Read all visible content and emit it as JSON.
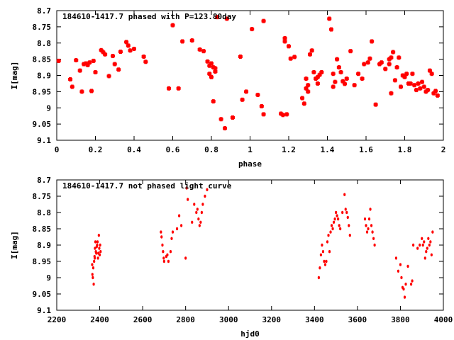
{
  "point_color": "#ff0000",
  "axis_color": "#000000",
  "chart_data": [
    {
      "type": "scatter",
      "title": "184610-1417.7 phased with P=123.80day",
      "xlabel": "phase",
      "ylabel": "I[mag]",
      "xlim": [
        0,
        2
      ],
      "ylim": [
        8.7,
        9.1
      ],
      "y_inverted": true,
      "marker": "filled-square-cross",
      "grid": false,
      "xticks": [
        0,
        0.2,
        0.4,
        0.6,
        0.8,
        1,
        1.2,
        1.4,
        1.6,
        1.8,
        2
      ],
      "xtick_labels": [
        "0",
        "0.2",
        "0.4",
        "0.6",
        "0.8",
        "1",
        "1.2",
        "1.4",
        "1.6",
        "1.8",
        "2"
      ],
      "yticks": [
        8.7,
        8.75,
        8.8,
        8.85,
        8.9,
        8.95,
        9,
        9.05,
        9.1
      ],
      "ytick_labels": [
        "8.7",
        "8.75",
        "8.8",
        "8.85",
        "8.9",
        "8.95",
        "9",
        "9.05",
        "9.1"
      ],
      "x": [
        0.01,
        0.07,
        0.08,
        0.1,
        0.12,
        0.13,
        0.14,
        0.15,
        0.16,
        0.17,
        0.18,
        0.19,
        0.2,
        0.23,
        0.24,
        0.25,
        0.27,
        0.29,
        0.3,
        0.32,
        0.33,
        0.36,
        0.37,
        0.38,
        0.4,
        0.45,
        0.46,
        0.58,
        0.6,
        0.63,
        0.65,
        0.7,
        0.74,
        0.76,
        0.78,
        0.79,
        0.79,
        0.8,
        0.8,
        0.81,
        0.81,
        0.82,
        0.82,
        0.83,
        0.85,
        0.87,
        0.88,
        0.91,
        0.95,
        0.96,
        0.98,
        1.01,
        1.04,
        1.06,
        1.07,
        1.07,
        1.16,
        1.17,
        1.18,
        1.18,
        1.19,
        1.2,
        1.21,
        1.23,
        1.27,
        1.28,
        1.29,
        1.29,
        1.3,
        1.3,
        1.31,
        1.32,
        1.33,
        1.34,
        1.35,
        1.35,
        1.36,
        1.37,
        1.41,
        1.42,
        1.43,
        1.43,
        1.44,
        1.45,
        1.46,
        1.47,
        1.48,
        1.49,
        1.5,
        1.52,
        1.54,
        1.56,
        1.58,
        1.59,
        1.61,
        1.62,
        1.63,
        1.65,
        1.67,
        1.68,
        1.7,
        1.72,
        1.72,
        1.73,
        1.73,
        1.74,
        1.75,
        1.76,
        1.77,
        1.78,
        1.79,
        1.8,
        1.81,
        1.82,
        1.83,
        1.84,
        1.85,
        1.86,
        1.87,
        1.88,
        1.89,
        1.9,
        1.91,
        1.92,
        1.93,
        1.94,
        1.95,
        1.96,
        1.97
      ],
      "y": [
        8.855,
        8.912,
        8.935,
        8.853,
        8.885,
        8.95,
        8.865,
        8.863,
        8.868,
        8.86,
        8.948,
        8.855,
        8.89,
        8.822,
        8.828,
        8.835,
        8.902,
        8.84,
        8.865,
        8.882,
        8.827,
        8.797,
        8.808,
        8.823,
        8.818,
        8.842,
        8.858,
        8.94,
        8.745,
        8.94,
        8.795,
        8.792,
        8.82,
        8.825,
        8.857,
        8.87,
        8.895,
        8.905,
        8.863,
        8.98,
        8.875,
        8.888,
        8.878,
        8.72,
        9.035,
        9.063,
        8.725,
        9.03,
        8.842,
        8.975,
        8.95,
        8.757,
        8.96,
        8.995,
        9.02,
        8.732,
        9.018,
        9.022,
        8.785,
        8.795,
        9.02,
        8.81,
        8.848,
        8.843,
        8.97,
        8.987,
        8.91,
        8.94,
        8.93,
        8.95,
        8.835,
        8.823,
        8.89,
        8.91,
        8.905,
        8.925,
        8.898,
        8.89,
        8.725,
        8.758,
        8.895,
        8.935,
        8.92,
        8.85,
        8.875,
        8.89,
        8.918,
        8.926,
        8.91,
        8.825,
        8.93,
        8.895,
        8.91,
        8.865,
        8.86,
        8.848,
        8.795,
        8.99,
        8.865,
        8.86,
        8.88,
        8.865,
        8.85,
        8.845,
        8.955,
        8.828,
        8.915,
        8.875,
        8.845,
        8.935,
        8.9,
        8.905,
        8.895,
        8.925,
        8.925,
        8.895,
        8.93,
        8.945,
        8.925,
        8.94,
        8.92,
        8.935,
        8.95,
        8.945,
        8.885,
        8.895,
        8.955,
        8.948,
        8.962
      ]
    },
    {
      "type": "scatter",
      "title": "184610-1417.7 not phased light curve",
      "xlabel": "hjd0",
      "ylabel": "I[mag]",
      "xlim": [
        2200,
        4000
      ],
      "ylim": [
        8.7,
        9.1
      ],
      "y_inverted": true,
      "marker": "small-dot",
      "grid": false,
      "xticks": [
        2200,
        2400,
        2600,
        2800,
        3000,
        3200,
        3400,
        3600,
        3800,
        4000
      ],
      "xtick_labels": [
        "2200",
        "2400",
        "2600",
        "2800",
        "3000",
        "3200",
        "3400",
        "3600",
        "3800",
        "4000"
      ],
      "yticks": [
        8.7,
        8.75,
        8.8,
        8.85,
        8.9,
        8.95,
        9,
        9.05,
        9.1
      ],
      "ytick_labels": [
        "8.7",
        "8.75",
        "8.8",
        "8.85",
        "8.9",
        "8.95",
        "9",
        "9.05",
        "9.1"
      ],
      "x": [
        2365,
        2366,
        2368,
        2370,
        2372,
        2374,
        2376,
        2377,
        2378,
        2380,
        2382,
        2384,
        2386,
        2388,
        2390,
        2392,
        2394,
        2396,
        2398,
        2400,
        2402,
        2404,
        2685,
        2688,
        2692,
        2695,
        2698,
        2700,
        2710,
        2715,
        2720,
        2730,
        2735,
        2740,
        2760,
        2770,
        2780,
        2800,
        2805,
        2810,
        2830,
        2840,
        2850,
        2855,
        2860,
        2865,
        2870,
        2875,
        2880,
        2890,
        2900,
        3420,
        3425,
        3430,
        3435,
        3440,
        3445,
        3450,
        3455,
        3460,
        3465,
        3470,
        3475,
        3480,
        3485,
        3490,
        3495,
        3500,
        3505,
        3510,
        3515,
        3520,
        3530,
        3540,
        3545,
        3550,
        3555,
        3560,
        3565,
        3635,
        3640,
        3645,
        3650,
        3655,
        3660,
        3665,
        3670,
        3675,
        3680,
        3780,
        3790,
        3800,
        3805,
        3810,
        3815,
        3820,
        3825,
        3835,
        3850,
        3855,
        3860,
        3880,
        3890,
        3900,
        3905,
        3910,
        3915,
        3920,
        3925,
        3930,
        3935,
        3940,
        3945,
        3950
      ],
      "y": [
        8.96,
        8.99,
        9.0,
        8.97,
        9.02,
        8.95,
        8.935,
        8.94,
        8.91,
        8.89,
        8.92,
        8.925,
        8.905,
        8.9,
        8.89,
        8.94,
        8.925,
        8.87,
        8.91,
        8.93,
        8.9,
        8.92,
        8.86,
        8.875,
        8.9,
        8.92,
        8.94,
        8.95,
        8.935,
        8.93,
        8.95,
        8.92,
        8.88,
        8.86,
        8.85,
        8.81,
        8.84,
        8.94,
        8.725,
        8.76,
        8.83,
        8.775,
        8.8,
        8.79,
        8.82,
        8.84,
        8.83,
        8.8,
        8.775,
        8.75,
        8.73,
        9.0,
        8.97,
        8.93,
        8.9,
        8.92,
        8.95,
        8.96,
        8.95,
        8.89,
        8.87,
        8.92,
        8.86,
        8.84,
        8.85,
        8.83,
        8.82,
        8.8,
        8.81,
        8.82,
        8.84,
        8.85,
        8.8,
        8.745,
        8.79,
        8.8,
        8.815,
        8.84,
        8.87,
        8.82,
        8.84,
        8.86,
        8.85,
        8.82,
        8.79,
        8.84,
        8.86,
        8.88,
        8.9,
        8.94,
        8.98,
        8.96,
        9.0,
        9.03,
        9.035,
        9.06,
        9.02,
        8.965,
        9.02,
        9.01,
        8.9,
        8.91,
        8.9,
        8.88,
        8.9,
        8.89,
        8.94,
        8.92,
        8.91,
        8.88,
        8.9,
        8.89,
        8.93,
        8.86
      ]
    }
  ]
}
